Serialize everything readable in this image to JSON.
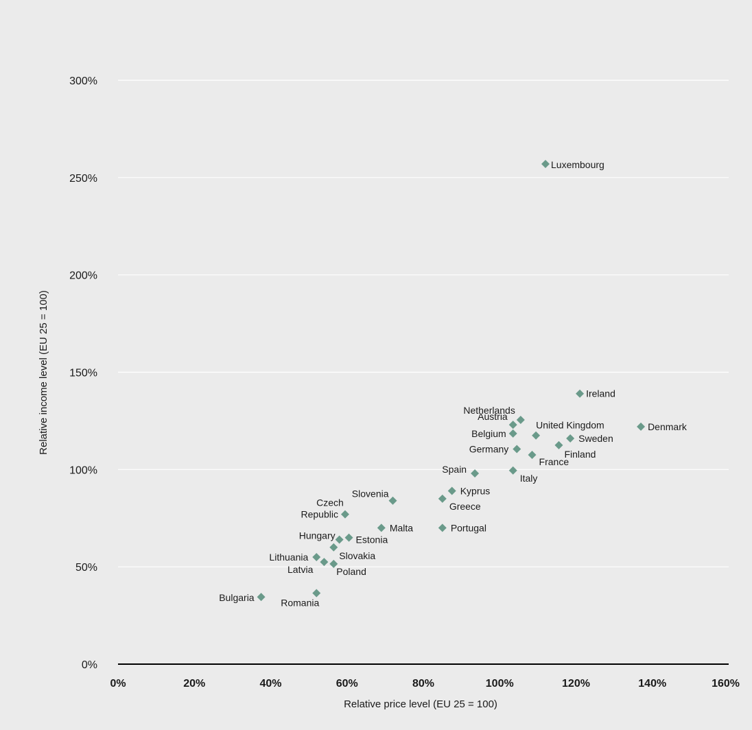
{
  "chart_data": {
    "type": "scatter",
    "xlabel": "Relative price level (EU 25 = 100)",
    "ylabel": "Relative income level (EU 25 = 100)",
    "xlim": [
      0,
      160
    ],
    "ylim": [
      0,
      300
    ],
    "x_ticks": [
      "0%",
      "20%",
      "40%",
      "60%",
      "80%",
      "100%",
      "120%",
      "140%",
      "160%"
    ],
    "y_ticks": [
      "0%",
      "50%",
      "100%",
      "150%",
      "200%",
      "250%",
      "300%"
    ],
    "grid": "horizontal",
    "marker_color": "#6a9a8a",
    "points": [
      {
        "label": "Luxembourg",
        "x": 112,
        "y": 257
      },
      {
        "label": "Ireland",
        "x": 121,
        "y": 139
      },
      {
        "label": "Denmark",
        "x": 137,
        "y": 122
      },
      {
        "label": "Netherlands",
        "x": 105.5,
        "y": 125.5
      },
      {
        "label": "Austria",
        "x": 103.5,
        "y": 123
      },
      {
        "label": "Belgium",
        "x": 103.5,
        "y": 118.5
      },
      {
        "label": "United Kingdom",
        "x": 109.5,
        "y": 117.5
      },
      {
        "label": "Sweden",
        "x": 118.5,
        "y": 116
      },
      {
        "label": "Finland",
        "x": 115.5,
        "y": 112.5
      },
      {
        "label": "Germany",
        "x": 104.5,
        "y": 110.5
      },
      {
        "label": "France",
        "x": 108.5,
        "y": 107.5
      },
      {
        "label": "Spain",
        "x": 93.5,
        "y": 98
      },
      {
        "label": "Italy",
        "x": 103.5,
        "y": 99.5
      },
      {
        "label": "Kyprus",
        "x": 87.5,
        "y": 89
      },
      {
        "label": "Greece",
        "x": 85,
        "y": 85
      },
      {
        "label": "Portugal",
        "x": 85,
        "y": 70
      },
      {
        "label": "Slovenia",
        "x": 72,
        "y": 84
      },
      {
        "label": "Malta",
        "x": 69,
        "y": 70
      },
      {
        "label": "Czech Republic",
        "x": 59.5,
        "y": 77
      },
      {
        "label": "Hungary",
        "x": 58,
        "y": 64
      },
      {
        "label": "Estonia",
        "x": 60.5,
        "y": 65
      },
      {
        "label": "Slovakia",
        "x": 56.5,
        "y": 60
      },
      {
        "label": "Lithuania",
        "x": 52,
        "y": 55
      },
      {
        "label": "Latvia",
        "x": 54,
        "y": 52.5
      },
      {
        "label": "Poland",
        "x": 56.5,
        "y": 51.5
      },
      {
        "label": "Bulgaria",
        "x": 37.5,
        "y": 34.5
      },
      {
        "label": "Romania",
        "x": 52,
        "y": 36.5
      }
    ]
  }
}
